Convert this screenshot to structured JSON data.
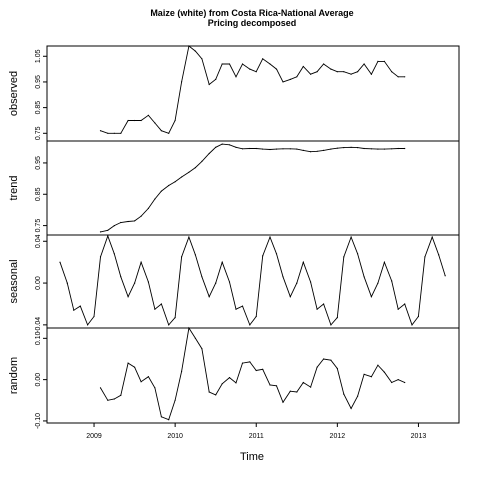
{
  "chart_data": {
    "type": "line",
    "title_line1": "Maize (white) from Costa Rica-National Average",
    "title_line2": "Pricing decomposed",
    "xlabel": "Time",
    "xlim": [
      2008.42,
      2013.5
    ],
    "x_ticks": [
      2009,
      2010,
      2011,
      2012,
      2013
    ],
    "x_tick_labels": [
      "2009",
      "2010",
      "2011",
      "2012",
      "2013"
    ],
    "panels": [
      {
        "name": "observed",
        "ylim": [
          0.72,
          1.09
        ],
        "y_ticks": [
          0.75,
          0.85,
          0.95,
          1.05
        ],
        "y_tick_labels": [
          "0.75",
          "0.85",
          "0.95",
          "1.05"
        ],
        "x": [
          2009.08,
          2009.17,
          2009.25,
          2009.33,
          2009.42,
          2009.5,
          2009.58,
          2009.67,
          2009.75,
          2009.83,
          2009.92,
          2010.0,
          2010.08,
          2010.17,
          2010.25,
          2010.33,
          2010.42,
          2010.5,
          2010.58,
          2010.67,
          2010.75,
          2010.83,
          2010.92,
          2011.0,
          2011.08,
          2011.17,
          2011.25,
          2011.33,
          2011.42,
          2011.5,
          2011.58,
          2011.67,
          2011.75,
          2011.83,
          2011.92,
          2012.0,
          2012.08,
          2012.17,
          2012.25,
          2012.33,
          2012.42,
          2012.5,
          2012.58,
          2012.67,
          2012.75,
          2012.83
        ],
        "values": [
          0.76,
          0.75,
          0.75,
          0.75,
          0.8,
          0.8,
          0.8,
          0.82,
          0.79,
          0.76,
          0.75,
          0.8,
          0.95,
          1.09,
          1.07,
          1.04,
          0.94,
          0.96,
          1.02,
          1.02,
          0.97,
          1.02,
          1.0,
          0.99,
          1.04,
          1.02,
          1.0,
          0.95,
          0.96,
          0.97,
          1.01,
          0.98,
          0.99,
          1.02,
          1.0,
          0.99,
          0.99,
          0.98,
          0.99,
          1.02,
          0.98,
          1.03,
          1.03,
          0.99,
          0.97,
          0.97
        ]
      },
      {
        "name": "trend",
        "ylim": [
          0.72,
          1.02
        ],
        "y_ticks": [
          0.75,
          0.85,
          0.95
        ],
        "y_tick_labels": [
          "0.75",
          "0.85",
          "0.95"
        ],
        "x": [
          2009.08,
          2009.17,
          2009.25,
          2009.33,
          2009.42,
          2009.5,
          2009.58,
          2009.67,
          2009.75,
          2009.83,
          2009.92,
          2010.0,
          2010.08,
          2010.17,
          2010.25,
          2010.33,
          2010.42,
          2010.5,
          2010.58,
          2010.67,
          2010.75,
          2010.83,
          2010.92,
          2011.0,
          2011.08,
          2011.17,
          2011.25,
          2011.33,
          2011.42,
          2011.5,
          2011.58,
          2011.67,
          2011.75,
          2011.83,
          2011.92,
          2012.0,
          2012.08,
          2012.17,
          2012.25,
          2012.33,
          2012.42,
          2012.5,
          2012.58,
          2012.67,
          2012.75,
          2012.83
        ],
        "values": [
          0.73,
          0.735,
          0.75,
          0.76,
          0.763,
          0.765,
          0.78,
          0.805,
          0.835,
          0.86,
          0.878,
          0.89,
          0.905,
          0.92,
          0.935,
          0.955,
          0.98,
          1.0,
          1.01,
          1.008,
          1.0,
          0.995,
          0.996,
          0.996,
          0.994,
          0.993,
          0.994,
          0.995,
          0.995,
          0.994,
          0.99,
          0.986,
          0.987,
          0.99,
          0.994,
          0.997,
          0.999,
          1.0,
          0.999,
          0.996,
          0.995,
          0.994,
          0.994,
          0.995,
          0.996,
          0.996
        ]
      },
      {
        "name": "seasonal",
        "ylim": [
          -0.043,
          0.046
        ],
        "y_ticks": [
          -0.04,
          0.0,
          0.04
        ],
        "y_tick_labels": [
          "-0.04",
          "0.00",
          "0.04"
        ],
        "x": [
          2008.58,
          2008.67,
          2008.75,
          2008.83,
          2008.92,
          2009.0,
          2009.08,
          2009.17,
          2009.25,
          2009.33,
          2009.42,
          2009.5,
          2009.58,
          2009.67,
          2009.75,
          2009.83,
          2009.92,
          2010.0,
          2010.08,
          2010.17,
          2010.25,
          2010.33,
          2010.42,
          2010.5,
          2010.58,
          2010.67,
          2010.75,
          2010.83,
          2010.92,
          2011.0,
          2011.08,
          2011.17,
          2011.25,
          2011.33,
          2011.42,
          2011.5,
          2011.58,
          2011.67,
          2011.75,
          2011.83,
          2011.92,
          2012.0,
          2012.08,
          2012.17,
          2012.25,
          2012.33,
          2012.42,
          2012.5,
          2012.58,
          2012.67,
          2012.75,
          2012.83,
          2012.92,
          2013.0,
          2013.08,
          2013.17,
          2013.25,
          2013.33
        ],
        "values": [
          0.02,
          0.0,
          -0.026,
          -0.022,
          -0.04,
          -0.032,
          0.025,
          0.045,
          0.028,
          0.006,
          -0.013,
          0.0,
          0.02,
          0.001,
          -0.025,
          -0.02,
          -0.04,
          -0.033,
          0.025,
          0.044,
          0.027,
          0.006,
          -0.013,
          0.0,
          0.02,
          0.001,
          -0.025,
          -0.022,
          -0.04,
          -0.032,
          0.026,
          0.044,
          0.028,
          0.006,
          -0.013,
          0.0,
          0.02,
          0.001,
          -0.025,
          -0.02,
          -0.04,
          -0.033,
          0.025,
          0.044,
          0.028,
          0.006,
          -0.013,
          0.0,
          0.02,
          0.002,
          -0.025,
          -0.02,
          -0.04,
          -0.032,
          0.025,
          0.044,
          0.027,
          0.007
        ]
      },
      {
        "name": "random",
        "ylim": [
          -0.105,
          0.125
        ],
        "y_ticks": [
          -0.1,
          0.0,
          0.1
        ],
        "y_tick_labels": [
          "-0.10",
          "0.00",
          "0.10"
        ],
        "x": [
          2009.08,
          2009.17,
          2009.25,
          2009.33,
          2009.42,
          2009.5,
          2009.58,
          2009.67,
          2009.75,
          2009.83,
          2009.92,
          2010.0,
          2010.08,
          2010.17,
          2010.25,
          2010.33,
          2010.42,
          2010.5,
          2010.58,
          2010.67,
          2010.75,
          2010.83,
          2010.92,
          2011.0,
          2011.08,
          2011.17,
          2011.25,
          2011.33,
          2011.42,
          2011.5,
          2011.58,
          2011.67,
          2011.75,
          2011.83,
          2011.92,
          2012.0,
          2012.08,
          2012.17,
          2012.25,
          2012.33,
          2012.42,
          2012.5,
          2012.58,
          2012.67,
          2012.75,
          2012.83
        ],
        "values": [
          -0.02,
          -0.05,
          -0.047,
          -0.038,
          0.04,
          0.03,
          -0.005,
          0.007,
          -0.02,
          -0.09,
          -0.097,
          -0.05,
          0.02,
          0.125,
          0.1,
          0.075,
          -0.03,
          -0.037,
          -0.01,
          0.005,
          -0.008,
          0.04,
          0.043,
          0.022,
          0.025,
          -0.013,
          -0.015,
          -0.055,
          -0.028,
          -0.03,
          -0.007,
          -0.018,
          0.03,
          0.05,
          0.047,
          0.027,
          -0.035,
          -0.07,
          -0.04,
          0.013,
          0.007,
          0.035,
          0.018,
          -0.007,
          0.0,
          -0.007
        ]
      }
    ]
  }
}
